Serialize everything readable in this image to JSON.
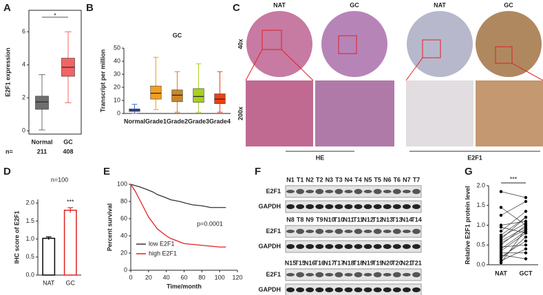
{
  "chart_data": [
    {
      "type": "box",
      "letter": "A",
      "ylabel": "E2F1 expression",
      "categories": [
        "Normal",
        "GC"
      ],
      "colors": [
        "#6e6e6e",
        "#f06464"
      ],
      "boxes": [
        {
          "min": 0.05,
          "q1": 1.3,
          "median": 1.75,
          "q3": 2.1,
          "max": 3.4
        },
        {
          "min": 1.7,
          "q1": 3.3,
          "median": 3.85,
          "q3": 4.4,
          "max": 6.0
        }
      ],
      "n_label": "n=",
      "n": [
        "211",
        "408"
      ],
      "annotation": "*",
      "ylim": [
        -0.2,
        7.3
      ],
      "yticks": [
        0,
        2,
        4,
        6
      ]
    },
    {
      "type": "box",
      "letter": "B",
      "title": "GC",
      "ylabel": "Transcript per million",
      "categories": [
        "Normal",
        "Grade1",
        "Grade2",
        "Grade3",
        "Grade4"
      ],
      "colors": [
        "#4466dd",
        "#f0a020",
        "#c8862a",
        "#a8d020",
        "#f04010"
      ],
      "boxes": [
        {
          "min": 0,
          "q1": 1.5,
          "median": 2.5,
          "q3": 3.5,
          "max": 7
        },
        {
          "min": 3,
          "q1": 11,
          "median": 15.5,
          "q3": 21,
          "max": 43
        },
        {
          "min": 1,
          "q1": 9,
          "median": 14,
          "q3": 18,
          "max": 32
        },
        {
          "min": 1,
          "q1": 8.5,
          "median": 13,
          "q3": 19,
          "max": 38
        },
        {
          "min": 1,
          "q1": 7.5,
          "median": 11,
          "q3": 15,
          "max": 32
        }
      ],
      "ylim": [
        0,
        50
      ],
      "yticks": [
        0,
        10,
        20,
        30,
        40,
        50
      ]
    },
    {
      "type": "bar",
      "letter": "D",
      "title": "n=100",
      "ylabel": "IHC score of E2F1",
      "categories": [
        "NAT",
        "GC"
      ],
      "colors": [
        "#000000",
        "#e02020"
      ],
      "values": [
        1.02,
        1.8
      ],
      "errors": [
        0.04,
        0.07
      ],
      "annotation": "***",
      "ylim": [
        0,
        2.1
      ],
      "yticks": [
        {
          "value": 0,
          "label": "0.0"
        },
        {
          "value": 0.5,
          "label": "0.5"
        },
        {
          "value": 1,
          "label": "1.0"
        },
        {
          "value": 1.5,
          "label": "1.5"
        },
        {
          "value": 2,
          "label": "2.0"
        }
      ]
    },
    {
      "type": "line",
      "letter": "E",
      "xlabel": "Time/month",
      "ylabel": "Percent survival",
      "annotation": "p=0.0001",
      "series": [
        {
          "name": "low E2F1",
          "color": "#333333",
          "x": [
            0,
            10,
            18,
            25,
            30,
            38,
            45,
            55,
            62,
            70,
            80,
            90,
            100,
            107
          ],
          "values": [
            100,
            97,
            94,
            91,
            88,
            85,
            82,
            80,
            78,
            76,
            75,
            73,
            73,
            73
          ]
        },
        {
          "name": "high E2F1",
          "color": "#e02020",
          "x": [
            0,
            5,
            10,
            15,
            20,
            25,
            30,
            35,
            40,
            45,
            50,
            55,
            60,
            70,
            80,
            90,
            100,
            107
          ],
          "values": [
            100,
            92,
            82,
            72,
            62,
            55,
            48,
            44,
            40,
            37,
            35,
            33,
            31,
            30,
            29,
            28,
            27,
            27
          ]
        }
      ],
      "xlim": [
        0,
        120
      ],
      "xticks": [
        0,
        20,
        40,
        60,
        80,
        100,
        120
      ],
      "ylim": [
        0,
        100
      ],
      "yticks": [
        0,
        20,
        40,
        60,
        80,
        100
      ]
    },
    {
      "type": "scatter",
      "letter": "G",
      "ylabel": "Relative E2F1 protein level",
      "annotation": "***",
      "series": [
        {
          "name": "NAT",
          "color": "#000000",
          "values": [
            1.85,
            1.45,
            1.25,
            1.0,
            0.95,
            0.85,
            0.75,
            0.6,
            0.55,
            0.5,
            0.45,
            0.4,
            0.35,
            0.3,
            0.25,
            0.2,
            0.15,
            0.1,
            0.05,
            0.7,
            0.65
          ]
        },
        {
          "name": "GCT",
          "color": "#000000",
          "values": [
            1.7,
            1.0,
            1.6,
            1.1,
            0.8,
            1.35,
            1.2,
            0.95,
            0.9,
            1.0,
            0.5,
            0.85,
            0.8,
            0.3,
            0.15,
            0.6,
            0.7,
            0.4,
            0.9,
            1.05,
            1.2
          ]
        }
      ],
      "ylim": [
        0,
        2
      ],
      "yticks": [
        {
          "value": 0,
          "label": "0.0"
        },
        {
          "value": 0.5,
          "label": "0.5"
        },
        {
          "value": 1,
          "label": "1.0"
        },
        {
          "value": 1.5,
          "label": "1.5"
        },
        {
          "value": 2,
          "label": "2.0"
        }
      ]
    }
  ],
  "panel_c": {
    "letter": "C",
    "columns": [
      "NAT",
      "GC",
      "NAT",
      "GC"
    ],
    "rows": [
      "40x",
      "200x"
    ],
    "groups": [
      "HE",
      "E2F1"
    ]
  },
  "panel_f": {
    "letter": "F",
    "blots": [
      {
        "lanes": [
          "N1",
          "T1",
          "N2",
          "T2",
          "N3",
          "T3",
          "N4",
          "T4",
          "N5",
          "T5",
          "N6",
          "T6",
          "N7",
          "T7"
        ],
        "bands": [
          "E2F1",
          "GAPDH"
        ]
      },
      {
        "lanes": [
          "N8",
          "T8",
          "N9",
          "T9",
          "N10",
          "T10",
          "N11",
          "T11",
          "N12",
          "T12",
          "N13",
          "T13",
          "N14",
          "T14"
        ],
        "bands": [
          "E2F1",
          "GAPDH"
        ]
      },
      {
        "lanes": [
          "N15",
          "T15",
          "N16",
          "T16",
          "N17",
          "T17",
          "N18",
          "T18",
          "N19",
          "T19",
          "N20",
          "T20",
          "N21",
          "T21"
        ],
        "bands": [
          "E2F1",
          "GAPDH"
        ]
      }
    ]
  }
}
